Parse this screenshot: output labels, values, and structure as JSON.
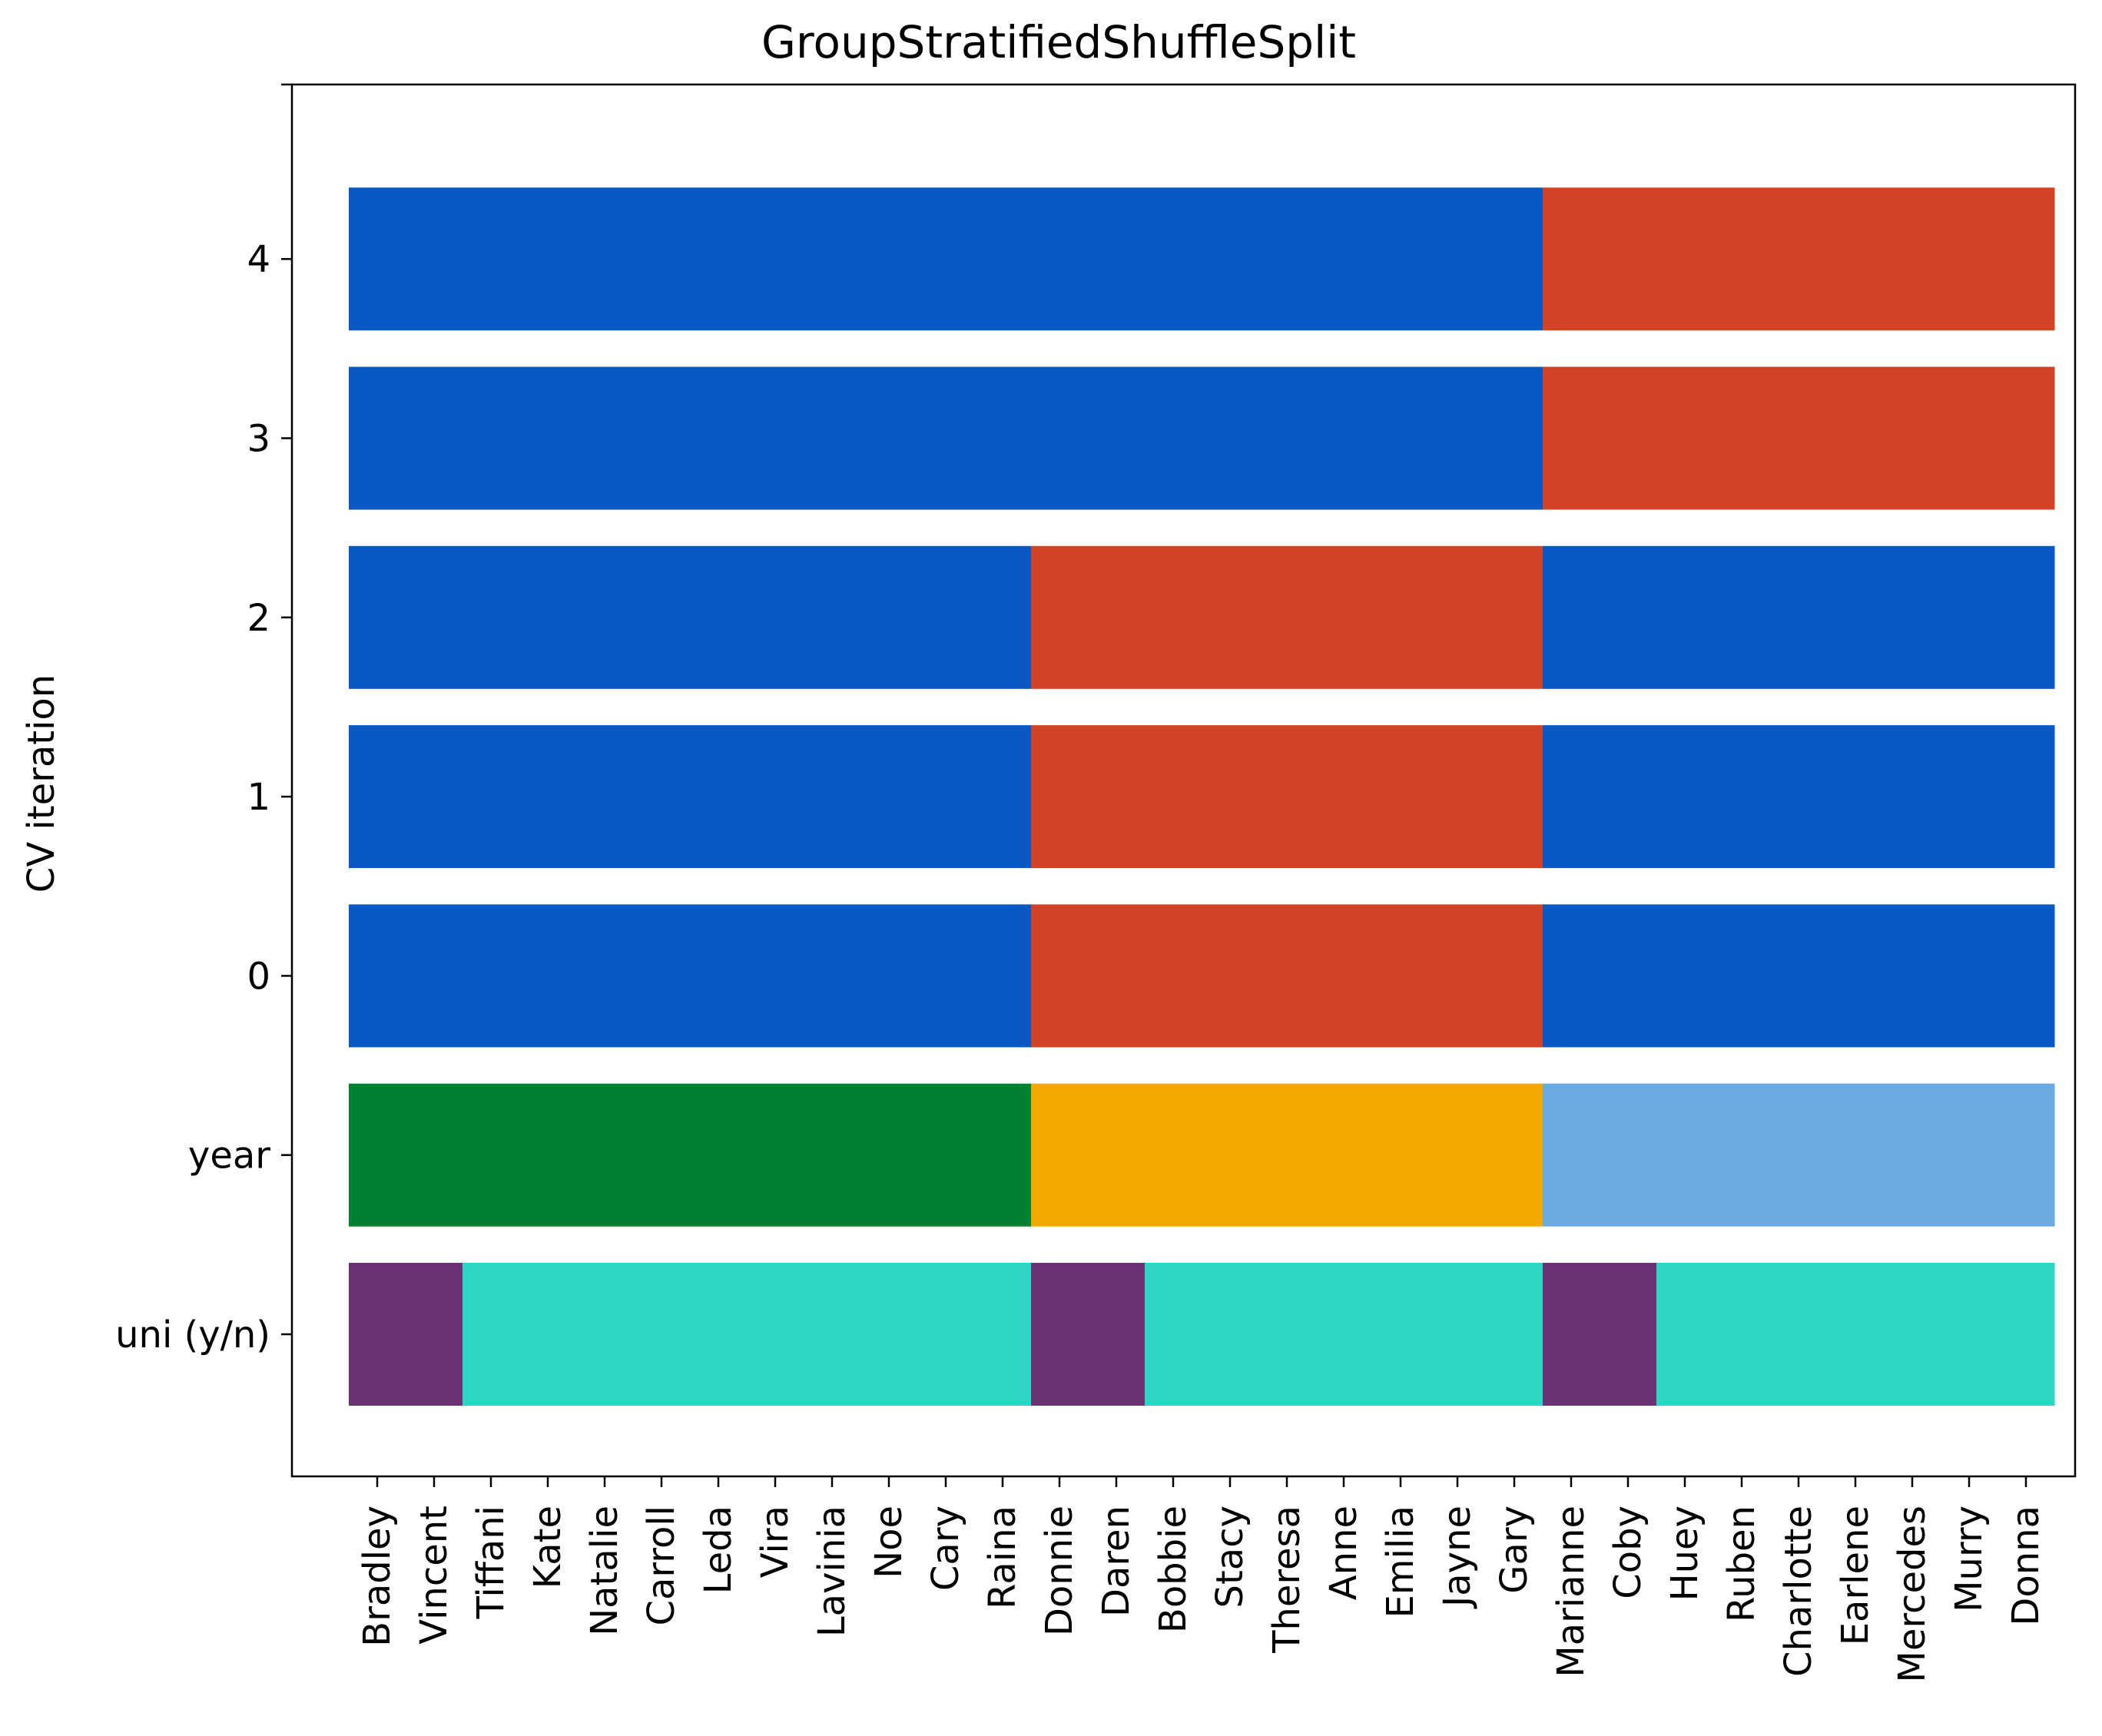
{
  "chart_data": {
    "type": "heatmap",
    "title": "GroupStratifiedShuffleSplit",
    "xlabel": "",
    "ylabel": "CV iteration",
    "x": [
      "Bradley",
      "Vincent",
      "Tiffani",
      "Kate",
      "Natalie",
      "Carroll",
      "Leda",
      "Vira",
      "Lavinia",
      "Noe",
      "Cary",
      "Raina",
      "Donnie",
      "Daren",
      "Bobbie",
      "Stacy",
      "Theresa",
      "Anne",
      "Emilia",
      "Jayne",
      "Gary",
      "Marianne",
      "Coby",
      "Huey",
      "Ruben",
      "Charlotte",
      "Earlene",
      "Mercedes",
      "Murry",
      "Donna"
    ],
    "y_labels": [
      "uni (y/n)",
      "year",
      "0",
      "1",
      "2",
      "3",
      "4"
    ],
    "colors": {
      "train": "#0a58c4",
      "test": "#d24225",
      "year_a": "#008131",
      "year_b": "#f3aa00",
      "year_c": "#6aaae2",
      "uni_yes": "#6b3175",
      "uni_no": "#2fd5c4"
    },
    "rows": [
      {
        "label": "uni (y/n)",
        "segments": [
          {
            "from": 0,
            "to": 2,
            "color_key": "uni_yes"
          },
          {
            "from": 2,
            "to": 12,
            "color_key": "uni_no"
          },
          {
            "from": 12,
            "to": 14,
            "color_key": "uni_yes"
          },
          {
            "from": 14,
            "to": 21,
            "color_key": "uni_no"
          },
          {
            "from": 21,
            "to": 23,
            "color_key": "uni_yes"
          },
          {
            "from": 23,
            "to": 30,
            "color_key": "uni_no"
          }
        ]
      },
      {
        "label": "year",
        "segments": [
          {
            "from": 0,
            "to": 12,
            "color_key": "year_a"
          },
          {
            "from": 12,
            "to": 21,
            "color_key": "year_b"
          },
          {
            "from": 21,
            "to": 30,
            "color_key": "year_c"
          }
        ]
      },
      {
        "label": "0",
        "segments": [
          {
            "from": 0,
            "to": 12,
            "color_key": "train"
          },
          {
            "from": 12,
            "to": 21,
            "color_key": "test"
          },
          {
            "from": 21,
            "to": 30,
            "color_key": "train"
          }
        ]
      },
      {
        "label": "1",
        "segments": [
          {
            "from": 0,
            "to": 12,
            "color_key": "train"
          },
          {
            "from": 12,
            "to": 21,
            "color_key": "test"
          },
          {
            "from": 21,
            "to": 30,
            "color_key": "train"
          }
        ]
      },
      {
        "label": "2",
        "segments": [
          {
            "from": 0,
            "to": 12,
            "color_key": "train"
          },
          {
            "from": 12,
            "to": 21,
            "color_key": "test"
          },
          {
            "from": 21,
            "to": 30,
            "color_key": "train"
          }
        ]
      },
      {
        "label": "3",
        "segments": [
          {
            "from": 0,
            "to": 21,
            "color_key": "train"
          },
          {
            "from": 21,
            "to": 30,
            "color_key": "test"
          }
        ]
      },
      {
        "label": "4",
        "segments": [
          {
            "from": 0,
            "to": 21,
            "color_key": "train"
          },
          {
            "from": 21,
            "to": 30,
            "color_key": "test"
          }
        ]
      }
    ]
  }
}
